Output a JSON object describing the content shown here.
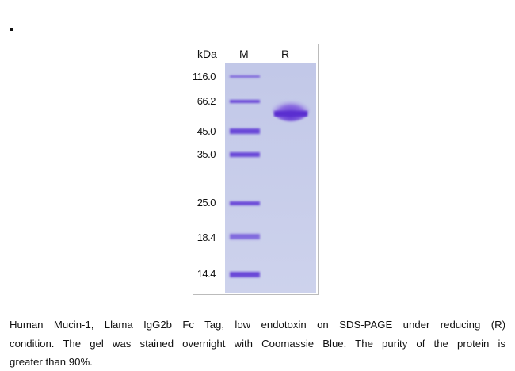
{
  "figure": {
    "lane_headers": {
      "unit": "kDa",
      "marker": "M",
      "sample": "R"
    },
    "marker_labels": [
      "116.0",
      "66.2",
      "45.0",
      "35.0",
      "25.0",
      "18.4",
      "14.4"
    ],
    "caption_lines": [
      "Human Mucin-1, Llama IgG2b Fc Tag, low endotoxin on SDS-PAGE under reducing (R)",
      "condition. The gel was stained overnight with Coomassie Blue. The purity of the protein is",
      "greater than 90%."
    ]
  }
}
